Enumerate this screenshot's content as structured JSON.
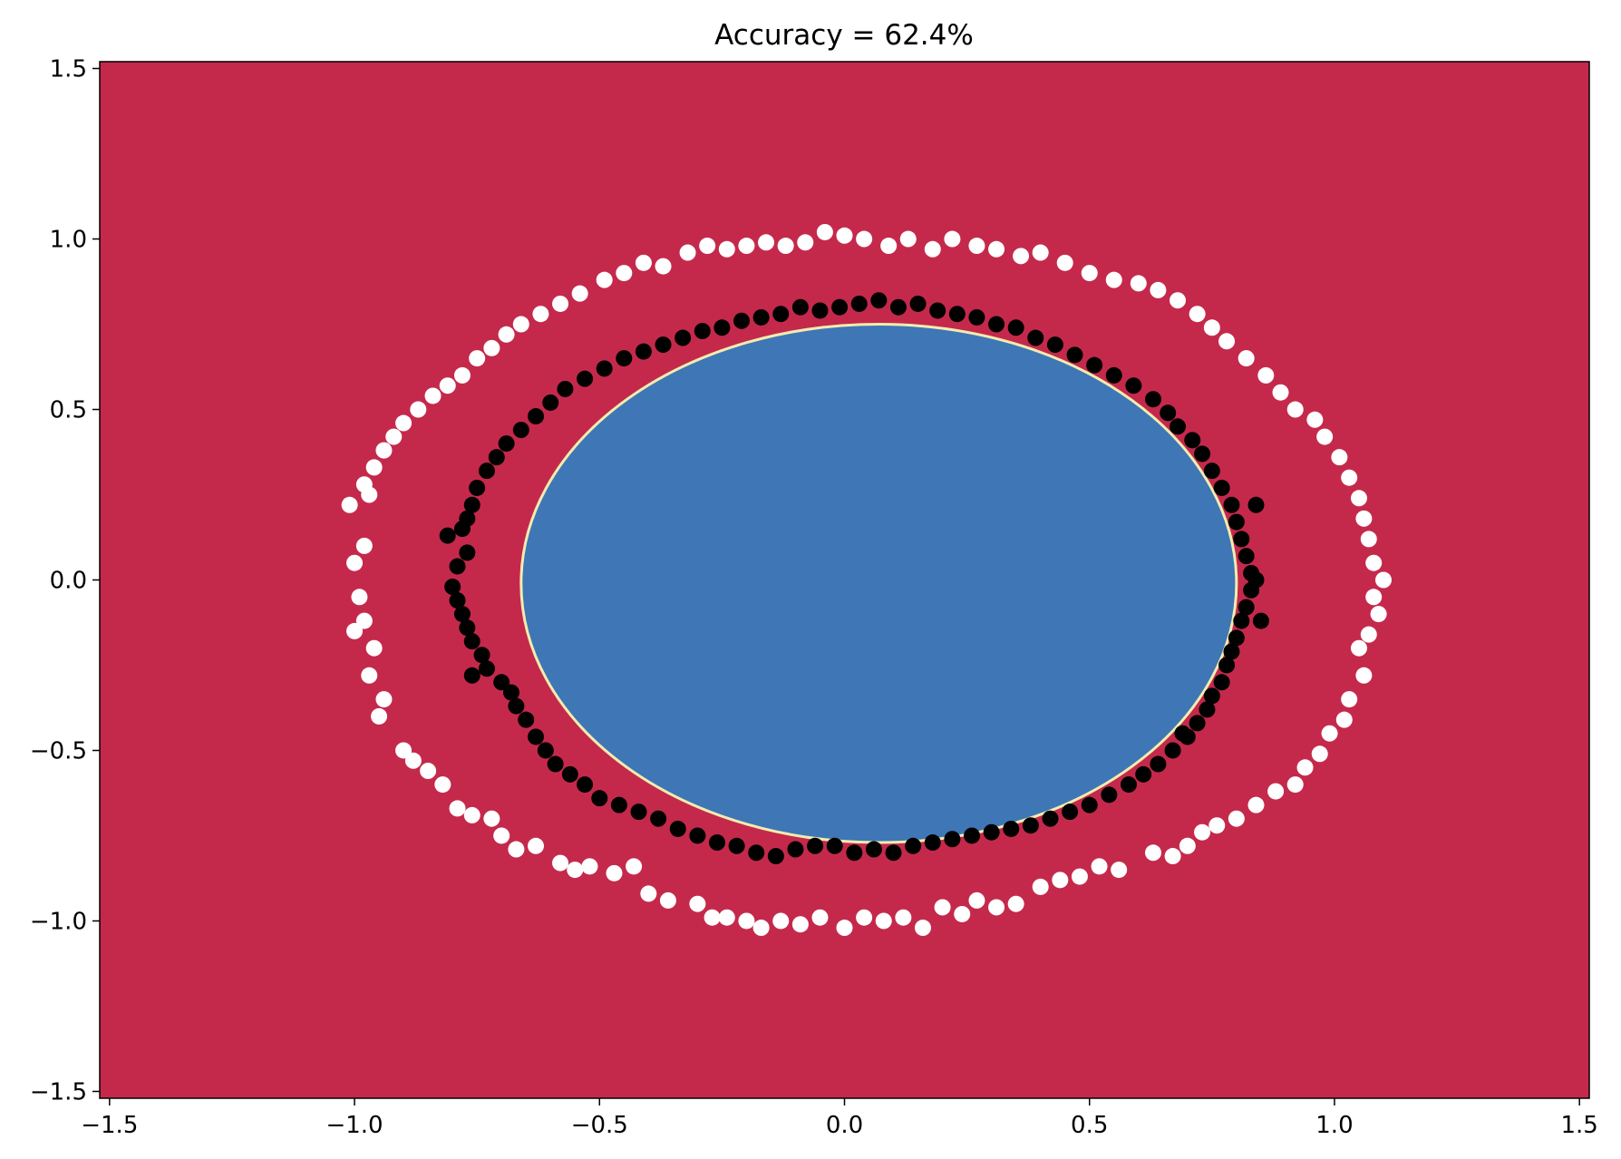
{
  "chart_data": {
    "type": "scatter",
    "title": "Accuracy = 62.4%",
    "xlabel": "",
    "ylabel": "",
    "xlim": [
      -1.52,
      1.52
    ],
    "ylim": [
      -1.52,
      1.52
    ],
    "xticks": [
      -1.5,
      -1.0,
      -0.5,
      0.0,
      0.5,
      1.0,
      1.5
    ],
    "yticks": [
      -1.5,
      -1.0,
      -0.5,
      0.0,
      0.5,
      1.0,
      1.5
    ],
    "xtick_labels": [
      "−1.5",
      "−1.0",
      "−0.5",
      "0.0",
      "0.5",
      "1.0",
      "1.5"
    ],
    "ytick_labels": [
      "−1.5",
      "−1.0",
      "−0.5",
      "0.0",
      "0.5",
      "1.0",
      "1.5"
    ],
    "grid": false,
    "background_region": {
      "class": 0,
      "color": "#c4294b"
    },
    "decision_region": {
      "class": 1,
      "color": "#3f76b5",
      "border_color": "#f2ecb0",
      "shape": "ellipse",
      "center": [
        0.07,
        -0.01
      ],
      "radius_x": 0.73,
      "radius_y": 0.76
    },
    "series": [
      {
        "color": "#ffffff",
        "points": [
          [
            -1.01,
            0.22
          ],
          [
            -1.0,
            0.05
          ],
          [
            -0.98,
            0.1
          ],
          [
            -0.97,
            0.25
          ],
          [
            -0.99,
            -0.05
          ],
          [
            -0.98,
            -0.12
          ],
          [
            -1.0,
            -0.15
          ],
          [
            -0.96,
            -0.2
          ],
          [
            -0.97,
            -0.28
          ],
          [
            -0.94,
            -0.35
          ],
          [
            -0.95,
            -0.4
          ],
          [
            -0.9,
            -0.5
          ],
          [
            -0.88,
            -0.53
          ],
          [
            -0.85,
            -0.56
          ],
          [
            -0.82,
            -0.6
          ],
          [
            -0.79,
            -0.67
          ],
          [
            -0.76,
            -0.69
          ],
          [
            -0.72,
            -0.7
          ],
          [
            -0.7,
            -0.75
          ],
          [
            -0.67,
            -0.79
          ],
          [
            -0.63,
            -0.78
          ],
          [
            -0.58,
            -0.83
          ],
          [
            -0.55,
            -0.85
          ],
          [
            -0.52,
            -0.84
          ],
          [
            -0.47,
            -0.86
          ],
          [
            -0.43,
            -0.84
          ],
          [
            -0.4,
            -0.92
          ],
          [
            -0.36,
            -0.94
          ],
          [
            -0.3,
            -0.95
          ],
          [
            -0.27,
            -0.99
          ],
          [
            -0.24,
            -0.99
          ],
          [
            -0.2,
            -1.0
          ],
          [
            -0.17,
            -1.02
          ],
          [
            -0.13,
            -1.0
          ],
          [
            -0.09,
            -1.01
          ],
          [
            -0.05,
            -0.99
          ],
          [
            0.0,
            -1.02
          ],
          [
            0.04,
            -0.99
          ],
          [
            0.08,
            -1.0
          ],
          [
            0.12,
            -0.99
          ],
          [
            0.16,
            -1.02
          ],
          [
            0.2,
            -0.96
          ],
          [
            0.24,
            -0.98
          ],
          [
            0.27,
            -0.94
          ],
          [
            0.31,
            -0.96
          ],
          [
            0.35,
            -0.95
          ],
          [
            0.4,
            -0.9
          ],
          [
            0.44,
            -0.88
          ],
          [
            0.48,
            -0.87
          ],
          [
            0.52,
            -0.84
          ],
          [
            0.56,
            -0.85
          ],
          [
            0.63,
            -0.8
          ],
          [
            0.67,
            -0.81
          ],
          [
            0.7,
            -0.78
          ],
          [
            0.73,
            -0.74
          ],
          [
            0.76,
            -0.72
          ],
          [
            0.8,
            -0.7
          ],
          [
            0.84,
            -0.66
          ],
          [
            0.88,
            -0.62
          ],
          [
            0.92,
            -0.6
          ],
          [
            0.94,
            -0.55
          ],
          [
            0.97,
            -0.51
          ],
          [
            0.99,
            -0.45
          ],
          [
            1.02,
            -0.41
          ],
          [
            1.03,
            -0.35
          ],
          [
            1.06,
            -0.28
          ],
          [
            1.05,
            -0.2
          ],
          [
            1.07,
            -0.16
          ],
          [
            1.09,
            -0.1
          ],
          [
            1.08,
            -0.05
          ],
          [
            1.1,
            0.0
          ],
          [
            1.08,
            0.05
          ],
          [
            1.07,
            0.12
          ],
          [
            1.06,
            0.18
          ],
          [
            1.05,
            0.24
          ],
          [
            1.03,
            0.3
          ],
          [
            1.01,
            0.36
          ],
          [
            0.98,
            0.42
          ],
          [
            0.96,
            0.47
          ],
          [
            0.92,
            0.5
          ],
          [
            0.89,
            0.55
          ],
          [
            0.86,
            0.6
          ],
          [
            0.82,
            0.65
          ],
          [
            0.78,
            0.7
          ],
          [
            0.75,
            0.74
          ],
          [
            0.72,
            0.78
          ],
          [
            0.68,
            0.82
          ],
          [
            0.64,
            0.85
          ],
          [
            0.6,
            0.87
          ],
          [
            0.55,
            0.88
          ],
          [
            0.5,
            0.9
          ],
          [
            0.45,
            0.93
          ],
          [
            0.4,
            0.96
          ],
          [
            0.36,
            0.95
          ],
          [
            0.31,
            0.97
          ],
          [
            0.27,
            0.98
          ],
          [
            0.22,
            1.0
          ],
          [
            0.18,
            0.97
          ],
          [
            0.13,
            1.0
          ],
          [
            0.09,
            0.98
          ],
          [
            0.04,
            1.0
          ],
          [
            0.0,
            1.01
          ],
          [
            -0.04,
            1.02
          ],
          [
            -0.08,
            0.99
          ],
          [
            -0.12,
            0.98
          ],
          [
            -0.16,
            0.99
          ],
          [
            -0.2,
            0.98
          ],
          [
            -0.24,
            0.97
          ],
          [
            -0.28,
            0.98
          ],
          [
            -0.32,
            0.96
          ],
          [
            -0.37,
            0.92
          ],
          [
            -0.41,
            0.93
          ],
          [
            -0.45,
            0.9
          ],
          [
            -0.49,
            0.88
          ],
          [
            -0.54,
            0.84
          ],
          [
            -0.58,
            0.81
          ],
          [
            -0.62,
            0.78
          ],
          [
            -0.66,
            0.75
          ],
          [
            -0.69,
            0.72
          ],
          [
            -0.72,
            0.68
          ],
          [
            -0.75,
            0.65
          ],
          [
            -0.78,
            0.6
          ],
          [
            -0.81,
            0.57
          ],
          [
            -0.84,
            0.54
          ],
          [
            -0.87,
            0.5
          ],
          [
            -0.9,
            0.46
          ],
          [
            -0.92,
            0.42
          ],
          [
            -0.94,
            0.38
          ],
          [
            -0.96,
            0.33
          ],
          [
            -0.98,
            0.28
          ]
        ]
      },
      {
        "color": "#000000",
        "points": [
          [
            -0.81,
            0.13
          ],
          [
            -0.78,
            0.15
          ],
          [
            -0.77,
            0.08
          ],
          [
            -0.79,
            0.04
          ],
          [
            -0.8,
            -0.02
          ],
          [
            -0.79,
            -0.06
          ],
          [
            -0.78,
            -0.1
          ],
          [
            -0.77,
            -0.14
          ],
          [
            -0.76,
            -0.18
          ],
          [
            -0.74,
            -0.22
          ],
          [
            -0.73,
            -0.26
          ],
          [
            -0.7,
            -0.3
          ],
          [
            -0.68,
            -0.33
          ],
          [
            -0.67,
            -0.37
          ],
          [
            -0.65,
            -0.41
          ],
          [
            -0.63,
            -0.46
          ],
          [
            -0.61,
            -0.5
          ],
          [
            -0.59,
            -0.54
          ],
          [
            -0.56,
            -0.57
          ],
          [
            -0.53,
            -0.6
          ],
          [
            -0.5,
            -0.64
          ],
          [
            -0.46,
            -0.66
          ],
          [
            -0.42,
            -0.68
          ],
          [
            -0.38,
            -0.7
          ],
          [
            -0.34,
            -0.73
          ],
          [
            -0.3,
            -0.75
          ],
          [
            -0.26,
            -0.77
          ],
          [
            -0.22,
            -0.78
          ],
          [
            -0.18,
            -0.8
          ],
          [
            -0.14,
            -0.81
          ],
          [
            -0.1,
            -0.79
          ],
          [
            -0.06,
            -0.78
          ],
          [
            -0.02,
            -0.78
          ],
          [
            0.02,
            -0.8
          ],
          [
            0.06,
            -0.79
          ],
          [
            0.1,
            -0.8
          ],
          [
            0.14,
            -0.78
          ],
          [
            0.18,
            -0.77
          ],
          [
            0.22,
            -0.76
          ],
          [
            0.26,
            -0.75
          ],
          [
            0.3,
            -0.74
          ],
          [
            0.34,
            -0.73
          ],
          [
            0.38,
            -0.72
          ],
          [
            0.42,
            -0.7
          ],
          [
            0.46,
            -0.68
          ],
          [
            0.5,
            -0.66
          ],
          [
            0.54,
            -0.63
          ],
          [
            0.58,
            -0.6
          ],
          [
            0.61,
            -0.57
          ],
          [
            0.64,
            -0.54
          ],
          [
            0.67,
            -0.5
          ],
          [
            0.7,
            -0.46
          ],
          [
            0.72,
            -0.42
          ],
          [
            0.74,
            -0.38
          ],
          [
            0.75,
            -0.34
          ],
          [
            0.77,
            -0.3
          ],
          [
            0.78,
            -0.25
          ],
          [
            0.79,
            -0.21
          ],
          [
            0.8,
            -0.17
          ],
          [
            0.81,
            -0.12
          ],
          [
            0.82,
            -0.08
          ],
          [
            0.83,
            -0.03
          ],
          [
            0.83,
            0.02
          ],
          [
            0.82,
            0.07
          ],
          [
            0.81,
            0.12
          ],
          [
            0.8,
            0.17
          ],
          [
            0.79,
            0.22
          ],
          [
            0.77,
            0.27
          ],
          [
            0.75,
            0.32
          ],
          [
            0.73,
            0.37
          ],
          [
            0.71,
            0.41
          ],
          [
            0.68,
            0.45
          ],
          [
            0.66,
            0.49
          ],
          [
            0.63,
            0.53
          ],
          [
            0.59,
            0.57
          ],
          [
            0.55,
            0.6
          ],
          [
            0.51,
            0.63
          ],
          [
            0.47,
            0.66
          ],
          [
            0.43,
            0.69
          ],
          [
            0.39,
            0.71
          ],
          [
            0.35,
            0.74
          ],
          [
            0.31,
            0.75
          ],
          [
            0.27,
            0.77
          ],
          [
            0.23,
            0.78
          ],
          [
            0.19,
            0.79
          ],
          [
            0.15,
            0.81
          ],
          [
            0.11,
            0.8
          ],
          [
            0.07,
            0.82
          ],
          [
            0.03,
            0.81
          ],
          [
            -0.01,
            0.8
          ],
          [
            -0.05,
            0.79
          ],
          [
            -0.09,
            0.8
          ],
          [
            -0.13,
            0.78
          ],
          [
            -0.17,
            0.77
          ],
          [
            -0.21,
            0.76
          ],
          [
            -0.25,
            0.74
          ],
          [
            -0.29,
            0.73
          ],
          [
            -0.33,
            0.71
          ],
          [
            -0.37,
            0.69
          ],
          [
            -0.41,
            0.67
          ],
          [
            -0.45,
            0.65
          ],
          [
            -0.49,
            0.62
          ],
          [
            -0.53,
            0.59
          ],
          [
            -0.57,
            0.56
          ],
          [
            -0.6,
            0.52
          ],
          [
            -0.63,
            0.48
          ],
          [
            -0.66,
            0.44
          ],
          [
            -0.69,
            0.4
          ],
          [
            -0.71,
            0.36
          ],
          [
            -0.73,
            0.32
          ],
          [
            -0.75,
            0.27
          ],
          [
            -0.76,
            0.22
          ],
          [
            -0.77,
            0.18
          ],
          [
            0.84,
            0.22
          ],
          [
            0.85,
            -0.12
          ],
          [
            0.84,
            0.0
          ],
          [
            0.69,
            -0.45
          ],
          [
            -0.76,
            -0.28
          ]
        ]
      }
    ]
  }
}
